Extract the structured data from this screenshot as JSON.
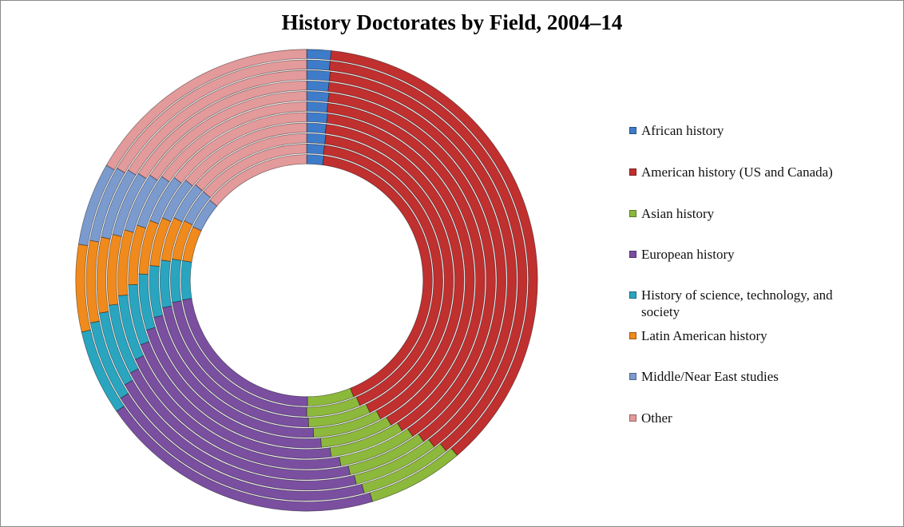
{
  "chart_data": {
    "type": "donut",
    "title": "History Doctorates by Field, 2004–14",
    "series": [
      {
        "name": "African history",
        "color": "#3e7cc9",
        "values": [
          2.2,
          2.1,
          2.1,
          2.0,
          2.0,
          1.9,
          1.9,
          1.8,
          1.8,
          1.7,
          1.7
        ]
      },
      {
        "name": "American history (US and Canada)",
        "color": "#c0302f",
        "values": [
          41.7,
          41.5,
          40.8,
          40.2,
          39.6,
          39.1,
          38.6,
          38.2,
          37.8,
          37.4,
          37.0
        ]
      },
      {
        "name": "Asian history",
        "color": "#8cb83c",
        "values": [
          6.0,
          6.4,
          6.9,
          7.1,
          7.0,
          6.8,
          6.6,
          6.5,
          6.6,
          6.7,
          6.7
        ]
      },
      {
        "name": "European history",
        "color": "#7a4fa0",
        "values": [
          22.6,
          22.4,
          22.2,
          21.9,
          21.6,
          21.3,
          21.0,
          20.8,
          20.5,
          20.2,
          20.0
        ]
      },
      {
        "name": "History of science, technology, and society",
        "color": "#2aa5c0",
        "values": [
          5.0,
          5.1,
          5.2,
          5.3,
          5.4,
          5.5,
          5.6,
          5.7,
          5.8,
          5.9,
          6.0
        ]
      },
      {
        "name": "Latin American history",
        "color": "#f08a1c",
        "values": [
          4.5,
          4.7,
          4.8,
          5.0,
          5.2,
          5.4,
          5.6,
          5.7,
          5.8,
          6.0,
          6.1
        ]
      },
      {
        "name": "Middle/Near East studies",
        "color": "#7b9bcf",
        "values": [
          4.0,
          4.1,
          4.3,
          4.5,
          4.7,
          4.9,
          5.1,
          5.3,
          5.5,
          5.6,
          5.8
        ]
      },
      {
        "name": "Other",
        "color": "#e39a9a",
        "values": [
          14.0,
          13.7,
          13.7,
          14.0,
          14.5,
          15.1,
          15.6,
          16.0,
          16.2,
          16.5,
          16.7
        ]
      }
    ]
  }
}
